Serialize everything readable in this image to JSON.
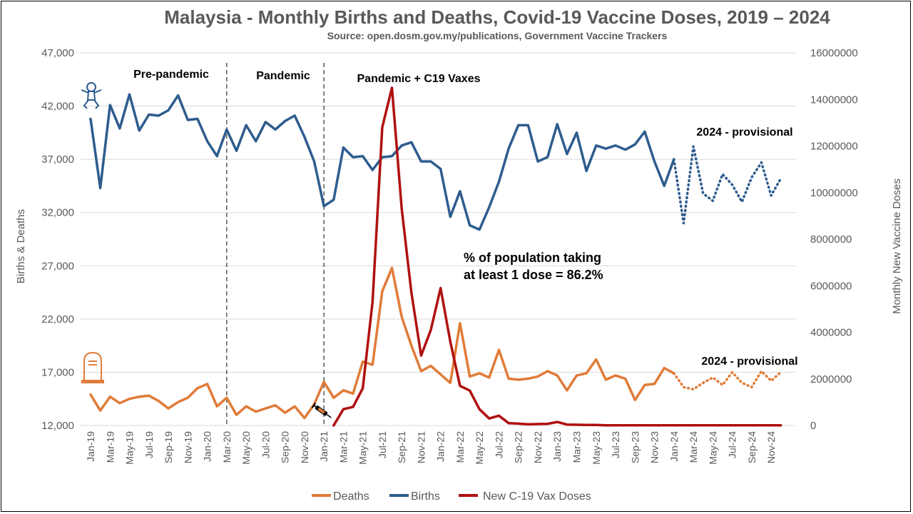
{
  "chart_data": {
    "type": "line",
    "title": "Malaysia - Monthly Births and Deaths, Covid-19 Vaccine Doses, 2019 – 2024",
    "subtitle": "Source: open.dosm.gov.my/publications, Government Vaccine Trackers",
    "ylabel": "Births & Deaths",
    "y2label": "Monthly New Vaccine Doses",
    "ylim": [
      12000,
      47000
    ],
    "y2lim": [
      0,
      16000000
    ],
    "y_ticks": [
      "47,000",
      "42,000",
      "37,000",
      "32,000",
      "27,000",
      "22,000",
      "17,000",
      "12,000"
    ],
    "y2_ticks": [
      "16000000",
      "14000000",
      "12000000",
      "10000000",
      "8000000",
      "6000000",
      "4000000",
      "2000000",
      "0"
    ],
    "x_tick_labels": [
      "Jan-19",
      "Mar-19",
      "May-19",
      "Jul-19",
      "Sep-19",
      "Nov-19",
      "Jan-20",
      "Mar-20",
      "May-20",
      "Jul-20",
      "Sep-20",
      "Nov-20",
      "Jan-21",
      "Mar-21",
      "May-21",
      "Jul-21",
      "Sep-21",
      "Nov-21",
      "Jan-22",
      "Mar-22",
      "May-22",
      "Jul-22",
      "Sep-22",
      "Nov-22",
      "Jan-23",
      "Mar-23",
      "May-23",
      "Jul-23",
      "Sep-23",
      "Nov-23",
      "Jan-24",
      "Mar-24",
      "May-24",
      "Jul-24",
      "Sep-24",
      "Nov-24"
    ],
    "x_months": [
      "Jan-19",
      "Feb-19",
      "Mar-19",
      "Apr-19",
      "May-19",
      "Jun-19",
      "Jul-19",
      "Aug-19",
      "Sep-19",
      "Oct-19",
      "Nov-19",
      "Dec-19",
      "Jan-20",
      "Feb-20",
      "Mar-20",
      "Apr-20",
      "May-20",
      "Jun-20",
      "Jul-20",
      "Aug-20",
      "Sep-20",
      "Oct-20",
      "Nov-20",
      "Dec-20",
      "Jan-21",
      "Feb-21",
      "Mar-21",
      "Apr-21",
      "May-21",
      "Jun-21",
      "Jul-21",
      "Aug-21",
      "Sep-21",
      "Oct-21",
      "Nov-21",
      "Dec-21",
      "Jan-22",
      "Feb-22",
      "Mar-22",
      "Apr-22",
      "May-22",
      "Jun-22",
      "Jul-22",
      "Aug-22",
      "Sep-22",
      "Oct-22",
      "Nov-22",
      "Dec-22",
      "Jan-23",
      "Feb-23",
      "Mar-23",
      "Apr-23",
      "May-23",
      "Jun-23",
      "Jul-23",
      "Aug-23",
      "Sep-23",
      "Oct-23",
      "Nov-23",
      "Dec-23",
      "Jan-24",
      "Feb-24",
      "Mar-24",
      "Apr-24",
      "May-24",
      "Jun-24",
      "Jul-24",
      "Aug-24",
      "Sep-24",
      "Oct-24",
      "Nov-24",
      "Dec-24"
    ],
    "series": [
      {
        "name": "Births",
        "axis": "left",
        "color": "#2E5C8E",
        "values": [
          40800,
          34300,
          42100,
          39900,
          43100,
          39700,
          41200,
          41100,
          41600,
          43000,
          40700,
          40800,
          38700,
          37300,
          39800,
          37800,
          40200,
          38700,
          40500,
          39800,
          40600,
          41100,
          39100,
          36800,
          32600,
          33200,
          38100,
          37200,
          37300,
          36000,
          37200,
          37300,
          38300,
          38600,
          36800,
          36800,
          36100,
          31600,
          34000,
          30800,
          30400,
          32500,
          34900,
          38000,
          40200,
          40200,
          36800,
          37200,
          40300,
          37500,
          39500,
          35900,
          38300,
          38000,
          38300,
          37900,
          38400,
          39600,
          36800,
          34500,
          37000,
          null,
          null,
          null,
          null,
          null,
          null,
          null,
          null,
          null,
          null,
          null
        ]
      },
      {
        "name": "Births (provisional)",
        "axis": "left",
        "color": "#2E5C8E",
        "dashed": true,
        "values": [
          null,
          null,
          null,
          null,
          null,
          null,
          null,
          null,
          null,
          null,
          null,
          null,
          null,
          null,
          null,
          null,
          null,
          null,
          null,
          null,
          null,
          null,
          null,
          null,
          null,
          null,
          null,
          null,
          null,
          null,
          null,
          null,
          null,
          null,
          null,
          null,
          null,
          null,
          null,
          null,
          null,
          null,
          null,
          null,
          null,
          null,
          null,
          null,
          null,
          null,
          null,
          null,
          null,
          null,
          null,
          null,
          null,
          null,
          null,
          null,
          37000,
          31000,
          38200,
          33800,
          33100,
          35600,
          34600,
          33000,
          35300,
          36700,
          33600,
          35200
        ]
      },
      {
        "name": "Deaths",
        "axis": "left",
        "color": "#E07B39",
        "values": [
          14900,
          13400,
          14700,
          14100,
          14500,
          14700,
          14800,
          14300,
          13600,
          14200,
          14600,
          15500,
          15900,
          13800,
          14600,
          13000,
          13800,
          13300,
          13600,
          13900,
          13200,
          13800,
          12700,
          14000,
          16100,
          14600,
          15300,
          15000,
          18000,
          17700,
          24600,
          26800,
          22200,
          19500,
          17100,
          17600,
          16800,
          16000,
          21600,
          16600,
          16900,
          16500,
          19100,
          16400,
          16300,
          16400,
          16600,
          17100,
          16700,
          15300,
          16700,
          16900,
          18200,
          16300,
          16700,
          16400,
          14400,
          15800,
          15900,
          17400,
          16900,
          null,
          null,
          null,
          null,
          null,
          null,
          null,
          null,
          null,
          null,
          null
        ]
      },
      {
        "name": "Deaths (provisional)",
        "axis": "left",
        "color": "#E07B39",
        "dashed": true,
        "values": [
          null,
          null,
          null,
          null,
          null,
          null,
          null,
          null,
          null,
          null,
          null,
          null,
          null,
          null,
          null,
          null,
          null,
          null,
          null,
          null,
          null,
          null,
          null,
          null,
          null,
          null,
          null,
          null,
          null,
          null,
          null,
          null,
          null,
          null,
          null,
          null,
          null,
          null,
          null,
          null,
          null,
          null,
          null,
          null,
          null,
          null,
          null,
          null,
          null,
          null,
          null,
          null,
          null,
          null,
          null,
          null,
          null,
          null,
          null,
          null,
          16900,
          15600,
          15400,
          16000,
          16500,
          15800,
          17000,
          16000,
          15600,
          17100,
          16200,
          17000
        ]
      },
      {
        "name": "New C-19 Vax Doses",
        "axis": "right",
        "color": "#B01010",
        "values": [
          null,
          null,
          null,
          null,
          null,
          null,
          null,
          null,
          null,
          null,
          null,
          null,
          null,
          null,
          null,
          null,
          null,
          null,
          null,
          null,
          null,
          null,
          null,
          null,
          null,
          0,
          700000,
          800000,
          1600000,
          5300000,
          12800000,
          14500000,
          9300000,
          5700000,
          3000000,
          4100000,
          5900000,
          3600000,
          1700000,
          1500000,
          700000,
          300000,
          420000,
          100000,
          80000,
          50000,
          60000,
          70000,
          150000,
          40000,
          30000,
          20000,
          20000,
          10000,
          10000,
          10000,
          10000,
          10000,
          10000,
          10000,
          10000,
          10000,
          10000,
          10000,
          10000,
          10000,
          10000,
          10000,
          10000,
          10000,
          10000,
          10000
        ]
      }
    ],
    "legend": [
      "Deaths",
      "Births",
      "New C-19 Vax Doses"
    ],
    "legend_position": "bottom",
    "period_dividers": [
      "Mar-20",
      "Jan-21"
    ],
    "grid": "horizontal"
  },
  "annotations": {
    "pre_pandemic": "Pre-pandemic",
    "pandemic": "Pandemic",
    "pandemic_vaxes": "Pandemic + C19 Vaxes",
    "dose_line1": "% of population taking",
    "dose_line2": "at least 1 dose = 86.2%",
    "provisional_births": "2024 - provisional",
    "provisional_deaths": "2024 - provisional"
  },
  "icons": {
    "baby": "baby-icon",
    "tombstone": "tombstone-icon",
    "syringe": "syringe-icon"
  }
}
